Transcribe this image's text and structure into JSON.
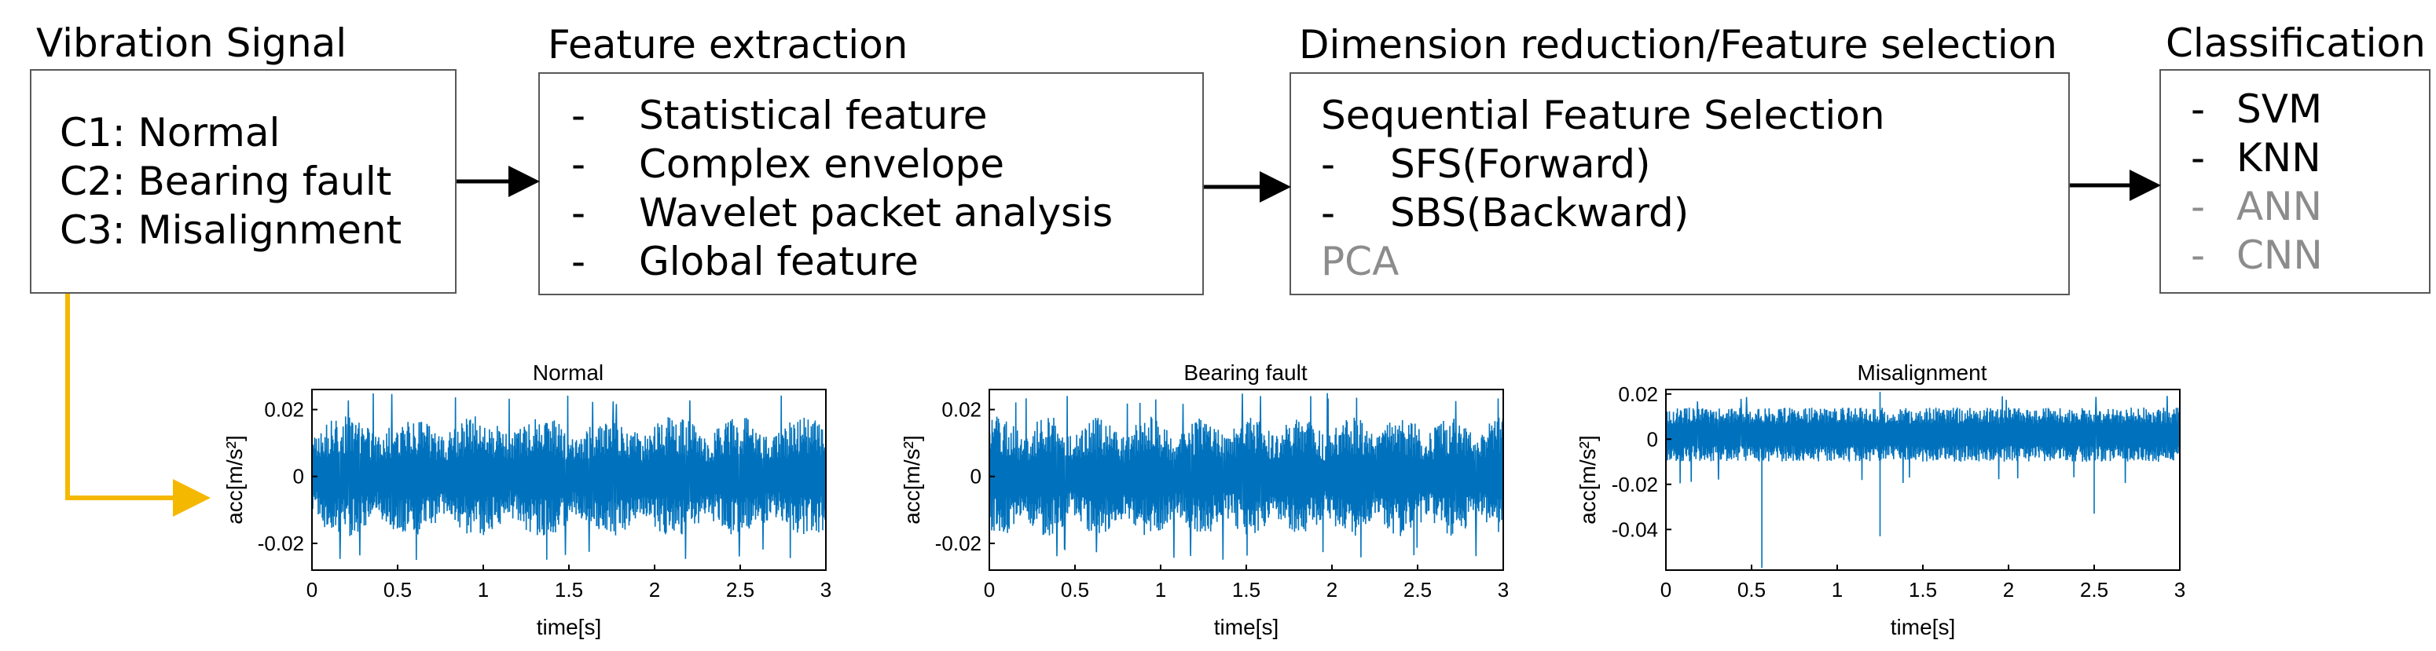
{
  "stages": [
    {
      "title": "Vibration Signal",
      "items": [
        "C1: Normal",
        "C2: Bearing fault",
        "C3: Misalignment"
      ]
    },
    {
      "title": "Feature extraction",
      "items": [
        "Statistical feature",
        "Complex envelope",
        "Wavelet packet analysis",
        "Global feature"
      ]
    },
    {
      "title": "Dimension reduction/Feature selection",
      "header": "Sequential Feature Selection",
      "items": [
        "SFS(Forward)",
        "SBS(Backward)"
      ],
      "extra": "PCA"
    },
    {
      "title": "Classification",
      "items": [
        "SVM",
        "KNN"
      ],
      "muted_items": [
        "ANN",
        "CNN"
      ]
    }
  ],
  "bullet": "-",
  "colors": {
    "arrow": "#000000",
    "connector": "#f5b800",
    "signal": "#0072bd",
    "muted": "#8c8c8c",
    "box_border": "#595959"
  },
  "chart_data": [
    {
      "type": "line",
      "title": "Normal",
      "xlabel": "time[s]",
      "ylabel": "acc[m/s²]",
      "xlim": [
        0,
        3
      ],
      "ylim": [
        -0.028,
        0.026
      ],
      "xticks": [
        "0",
        "0.5",
        "1",
        "1.5",
        "2",
        "2.5",
        "3"
      ],
      "yticks": [
        "0.02",
        "0",
        "-0.02"
      ],
      "ytick_values": [
        0.02,
        0,
        -0.02
      ],
      "signal": {
        "duration_s": 3,
        "amplitude_typical": 0.018,
        "amplitude_peak": 0.025
      }
    },
    {
      "type": "line",
      "title": "Bearing fault",
      "xlabel": "time[s]",
      "ylabel": "acc[m/s²]",
      "xlim": [
        0,
        3
      ],
      "ylim": [
        -0.028,
        0.026
      ],
      "xticks": [
        "0",
        "0.5",
        "1",
        "1.5",
        "2",
        "2.5",
        "3"
      ],
      "yticks": [
        "0.02",
        "0",
        "-0.02"
      ],
      "ytick_values": [
        0.02,
        0,
        -0.02
      ],
      "signal": {
        "duration_s": 3,
        "amplitude_typical": 0.018,
        "amplitude_peak": 0.025
      }
    },
    {
      "type": "line",
      "title": "Misalignment",
      "xlabel": "time[s]",
      "ylabel": "acc[m/s²]",
      "xlim": [
        0,
        3
      ],
      "ylim": [
        -0.058,
        0.022
      ],
      "xticks": [
        "0",
        "0.5",
        "1",
        "1.5",
        "2",
        "2.5",
        "3"
      ],
      "yticks": [
        "0.02",
        "0",
        "-0.02",
        "-0.04"
      ],
      "ytick_values": [
        0.02,
        0,
        -0.02,
        -0.04
      ],
      "signal": {
        "duration_s": 3,
        "amplitude_typical": 0.012,
        "amplitude_peak": 0.02,
        "spikes": [
          {
            "t": 0.56,
            "v": -0.057
          },
          {
            "t": 1.25,
            "v": -0.043
          },
          {
            "t": 1.25,
            "v": 0.021
          },
          {
            "t": 2.5,
            "v": -0.033
          }
        ]
      }
    }
  ]
}
